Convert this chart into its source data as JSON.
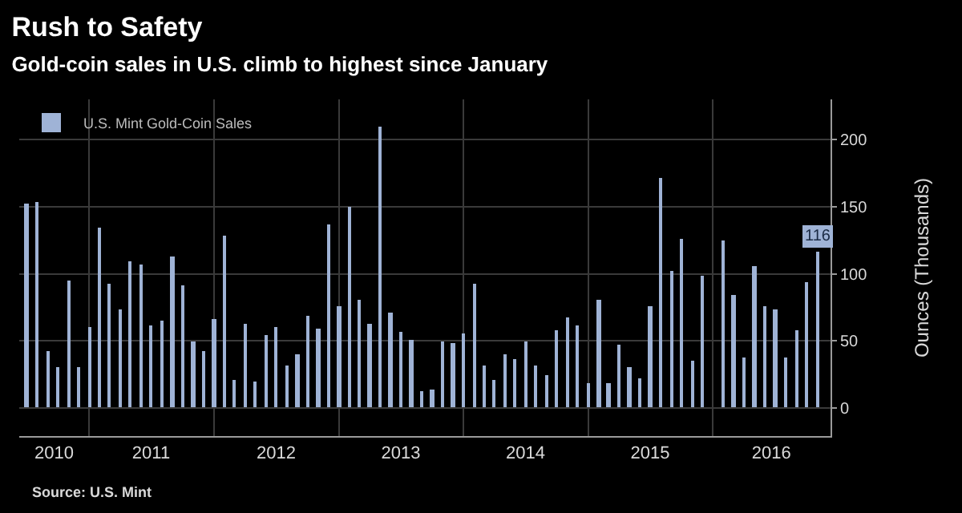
{
  "chart_data": {
    "type": "bar",
    "title": "Rush to Safety",
    "subtitle": "Gold-coin sales in U.S. climb to highest since January",
    "ylabel": "Ounces (Thousands)",
    "x": [
      "2010-07",
      "2010-08",
      "2010-09",
      "2010-10",
      "2010-11",
      "2010-12",
      "2011-01",
      "2011-02",
      "2011-03",
      "2011-04",
      "2011-05",
      "2011-06",
      "2011-07",
      "2011-08",
      "2011-09",
      "2011-10",
      "2011-11",
      "2011-12",
      "2012-01",
      "2012-02",
      "2012-03",
      "2012-04",
      "2012-05",
      "2012-06",
      "2012-07",
      "2012-08",
      "2012-09",
      "2012-10",
      "2012-11",
      "2012-12",
      "2013-01",
      "2013-02",
      "2013-03",
      "2013-04",
      "2013-05",
      "2013-06",
      "2013-07",
      "2013-08",
      "2013-09",
      "2013-10",
      "2013-11",
      "2013-12",
      "2014-01",
      "2014-02",
      "2014-03",
      "2014-04",
      "2014-05",
      "2014-06",
      "2014-07",
      "2014-08",
      "2014-09",
      "2014-10",
      "2014-11",
      "2014-12",
      "2015-01",
      "2015-02",
      "2015-03",
      "2015-04",
      "2015-05",
      "2015-06",
      "2015-07",
      "2015-08",
      "2015-09",
      "2015-10",
      "2015-11",
      "2015-12",
      "2016-01",
      "2016-02",
      "2016-03",
      "2016-04",
      "2016-05",
      "2016-06",
      "2016-07",
      "2016-08",
      "2016-09",
      "2016-10",
      "2016-11"
    ],
    "series": [
      {
        "name": "U.S. Mint Gold-Coin Sales",
        "color": "#9fb3d6",
        "values": [
          152,
          153,
          42,
          30,
          95,
          30,
          60,
          134,
          93,
          74,
          109,
          107,
          62,
          65,
          113,
          91,
          50,
          42,
          66,
          128,
          21,
          63,
          20,
          54,
          60,
          31,
          40,
          69,
          59,
          137,
          76,
          150,
          81,
          63,
          210,
          71,
          57,
          51,
          12,
          14,
          49,
          48,
          56,
          92,
          32,
          21,
          40,
          36,
          49,
          31,
          25,
          58,
          68,
          61,
          19,
          81,
          19,
          47,
          30,
          22,
          76,
          171,
          102,
          126,
          35,
          98,
          null,
          125,
          84,
          38,
          106,
          76,
          74,
          38,
          58,
          94,
          116
        ],
        "value_labels": [
          null,
          null,
          null,
          null,
          null,
          null,
          null,
          null,
          null,
          null,
          null,
          null,
          null,
          null,
          null,
          null,
          null,
          null,
          null,
          null,
          null,
          null,
          null,
          null,
          null,
          null,
          null,
          null,
          null,
          null,
          null,
          null,
          null,
          null,
          null,
          null,
          null,
          null,
          null,
          null,
          null,
          null,
          null,
          null,
          null,
          null,
          null,
          null,
          null,
          null,
          null,
          null,
          null,
          null,
          null,
          null,
          null,
          null,
          null,
          null,
          null,
          null,
          null,
          null,
          null,
          null,
          null,
          null,
          null,
          null,
          null,
          null,
          null,
          null,
          null,
          null,
          "116"
        ]
      }
    ],
    "xlim": [
      "2010-06-10",
      "2016-12-10"
    ],
    "xticks": [
      {
        "value": "2010-09-20",
        "label": "2010"
      },
      {
        "value": "2011-01-01",
        "label": null
      },
      {
        "value": "2011-07-01",
        "label": "2011"
      },
      {
        "value": "2012-01-01",
        "label": null
      },
      {
        "value": "2012-07-01",
        "label": "2012"
      },
      {
        "value": "2013-01-01",
        "label": null
      },
      {
        "value": "2013-07-01",
        "label": "2013"
      },
      {
        "value": "2014-01-01",
        "label": null
      },
      {
        "value": "2014-07-01",
        "label": "2014"
      },
      {
        "value": "2015-01-01",
        "label": null
      },
      {
        "value": "2015-07-01",
        "label": "2015"
      },
      {
        "value": "2016-01-01",
        "label": null
      },
      {
        "value": "2016-06-20",
        "label": "2016"
      }
    ],
    "ylim": [
      -21,
      230
    ],
    "yticks": [
      0,
      50,
      100,
      150,
      200
    ],
    "grid": true,
    "legend": "top left",
    "annotations": [
      "Source: U.S. Mint"
    ]
  }
}
